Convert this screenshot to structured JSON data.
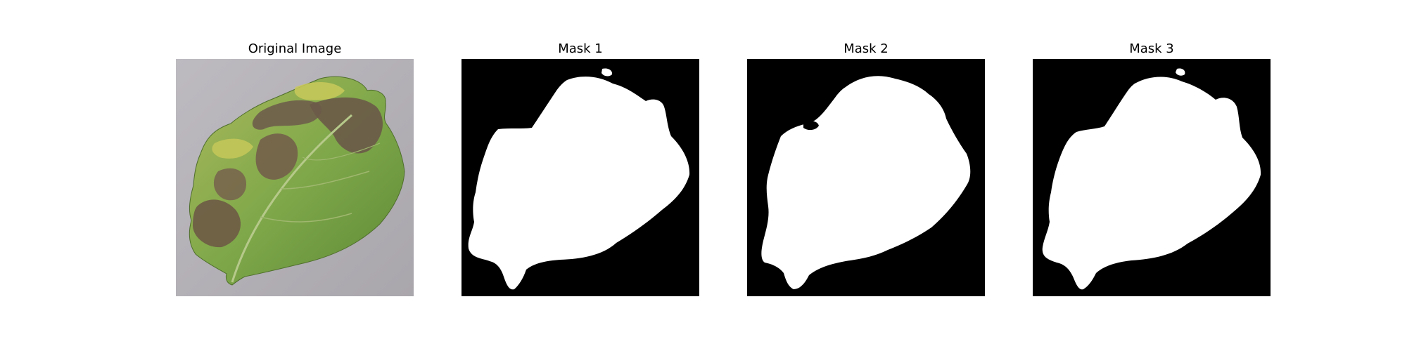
{
  "panels": [
    {
      "title": "Original Image",
      "kind": "photo",
      "subject": "leaf-photo"
    },
    {
      "title": "Mask 1",
      "kind": "mask"
    },
    {
      "title": "Mask 2",
      "kind": "mask"
    },
    {
      "title": "Mask 3",
      "kind": "mask"
    }
  ],
  "colors": {
    "mask_background": "#000000",
    "mask_foreground": "#ffffff",
    "photo_background": "#b5b2b8",
    "leaf_green": "#7fa84a",
    "leaf_dark_green": "#5f8a36",
    "leaf_yellow": "#c9c95a",
    "lesion_brown": "#6e5e4b"
  }
}
